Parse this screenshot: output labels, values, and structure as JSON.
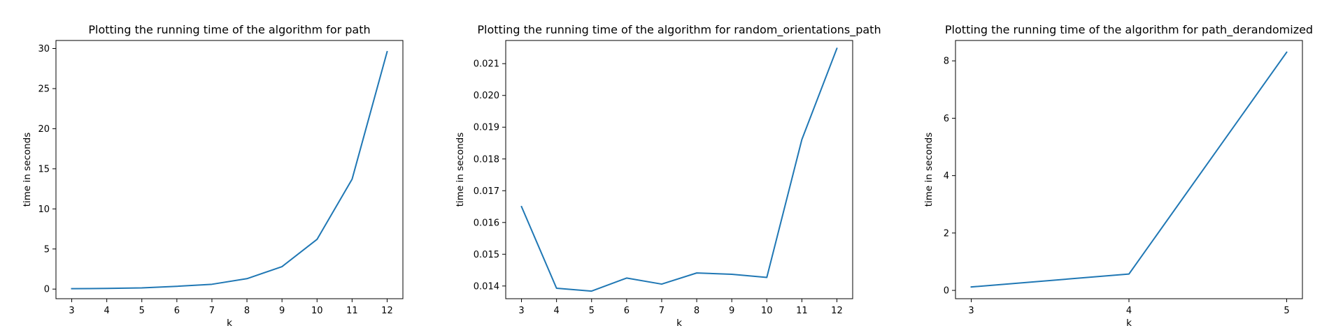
{
  "chart_data": [
    {
      "type": "line",
      "title": "Plotting the running time of the algorithm for path",
      "xlabel": "k",
      "ylabel": "time in seconds",
      "color": "#1f77b4",
      "x": [
        3,
        4,
        5,
        6,
        7,
        8,
        9,
        10,
        11,
        12
      ],
      "y": [
        0.05,
        0.08,
        0.15,
        0.35,
        0.6,
        1.3,
        2.8,
        6.2,
        13.7,
        29.6
      ],
      "xlim": [
        2.55,
        12.45
      ],
      "ylim": [
        -1.2,
        31.0
      ],
      "xticks": [
        3,
        4,
        5,
        6,
        7,
        8,
        9,
        10,
        11,
        12
      ],
      "yticks": [
        0,
        5,
        10,
        15,
        20,
        25,
        30
      ],
      "ytick_labels": [
        "0",
        "5",
        "10",
        "15",
        "20",
        "25",
        "30"
      ],
      "grid": false
    },
    {
      "type": "line",
      "title": "Plotting the running time of the algorithm for random_orientations_path",
      "xlabel": "k",
      "ylabel": "time in seconds",
      "color": "#1f77b4",
      "x": [
        3,
        4,
        5,
        6,
        7,
        8,
        9,
        10,
        11,
        12
      ],
      "y": [
        0.0165,
        0.01393,
        0.01384,
        0.01425,
        0.01406,
        0.01441,
        0.01437,
        0.01427,
        0.01861,
        0.02148
      ],
      "xlim": [
        2.55,
        12.45
      ],
      "ylim": [
        0.0136,
        0.02173
      ],
      "xticks": [
        3,
        4,
        5,
        6,
        7,
        8,
        9,
        10,
        11,
        12
      ],
      "yticks": [
        0.014,
        0.015,
        0.016,
        0.017,
        0.018,
        0.019,
        0.02,
        0.021
      ],
      "ytick_labels": [
        "0.014",
        "0.015",
        "0.016",
        "0.017",
        "0.018",
        "0.019",
        "0.020",
        "0.021"
      ],
      "grid": false
    },
    {
      "type": "line",
      "title": "Plotting the running time of the algorithm for path_derandomized",
      "xlabel": "k",
      "ylabel": "time in seconds",
      "color": "#1f77b4",
      "x": [
        3,
        4,
        5
      ],
      "y": [
        0.12,
        0.57,
        8.3
      ],
      "xlim": [
        2.9,
        5.1
      ],
      "ylim": [
        -0.29,
        8.71
      ],
      "xticks": [
        3,
        4,
        5
      ],
      "yticks": [
        0,
        2,
        4,
        6,
        8
      ],
      "ytick_labels": [
        "0",
        "2",
        "4",
        "6",
        "8"
      ],
      "grid": false
    }
  ]
}
